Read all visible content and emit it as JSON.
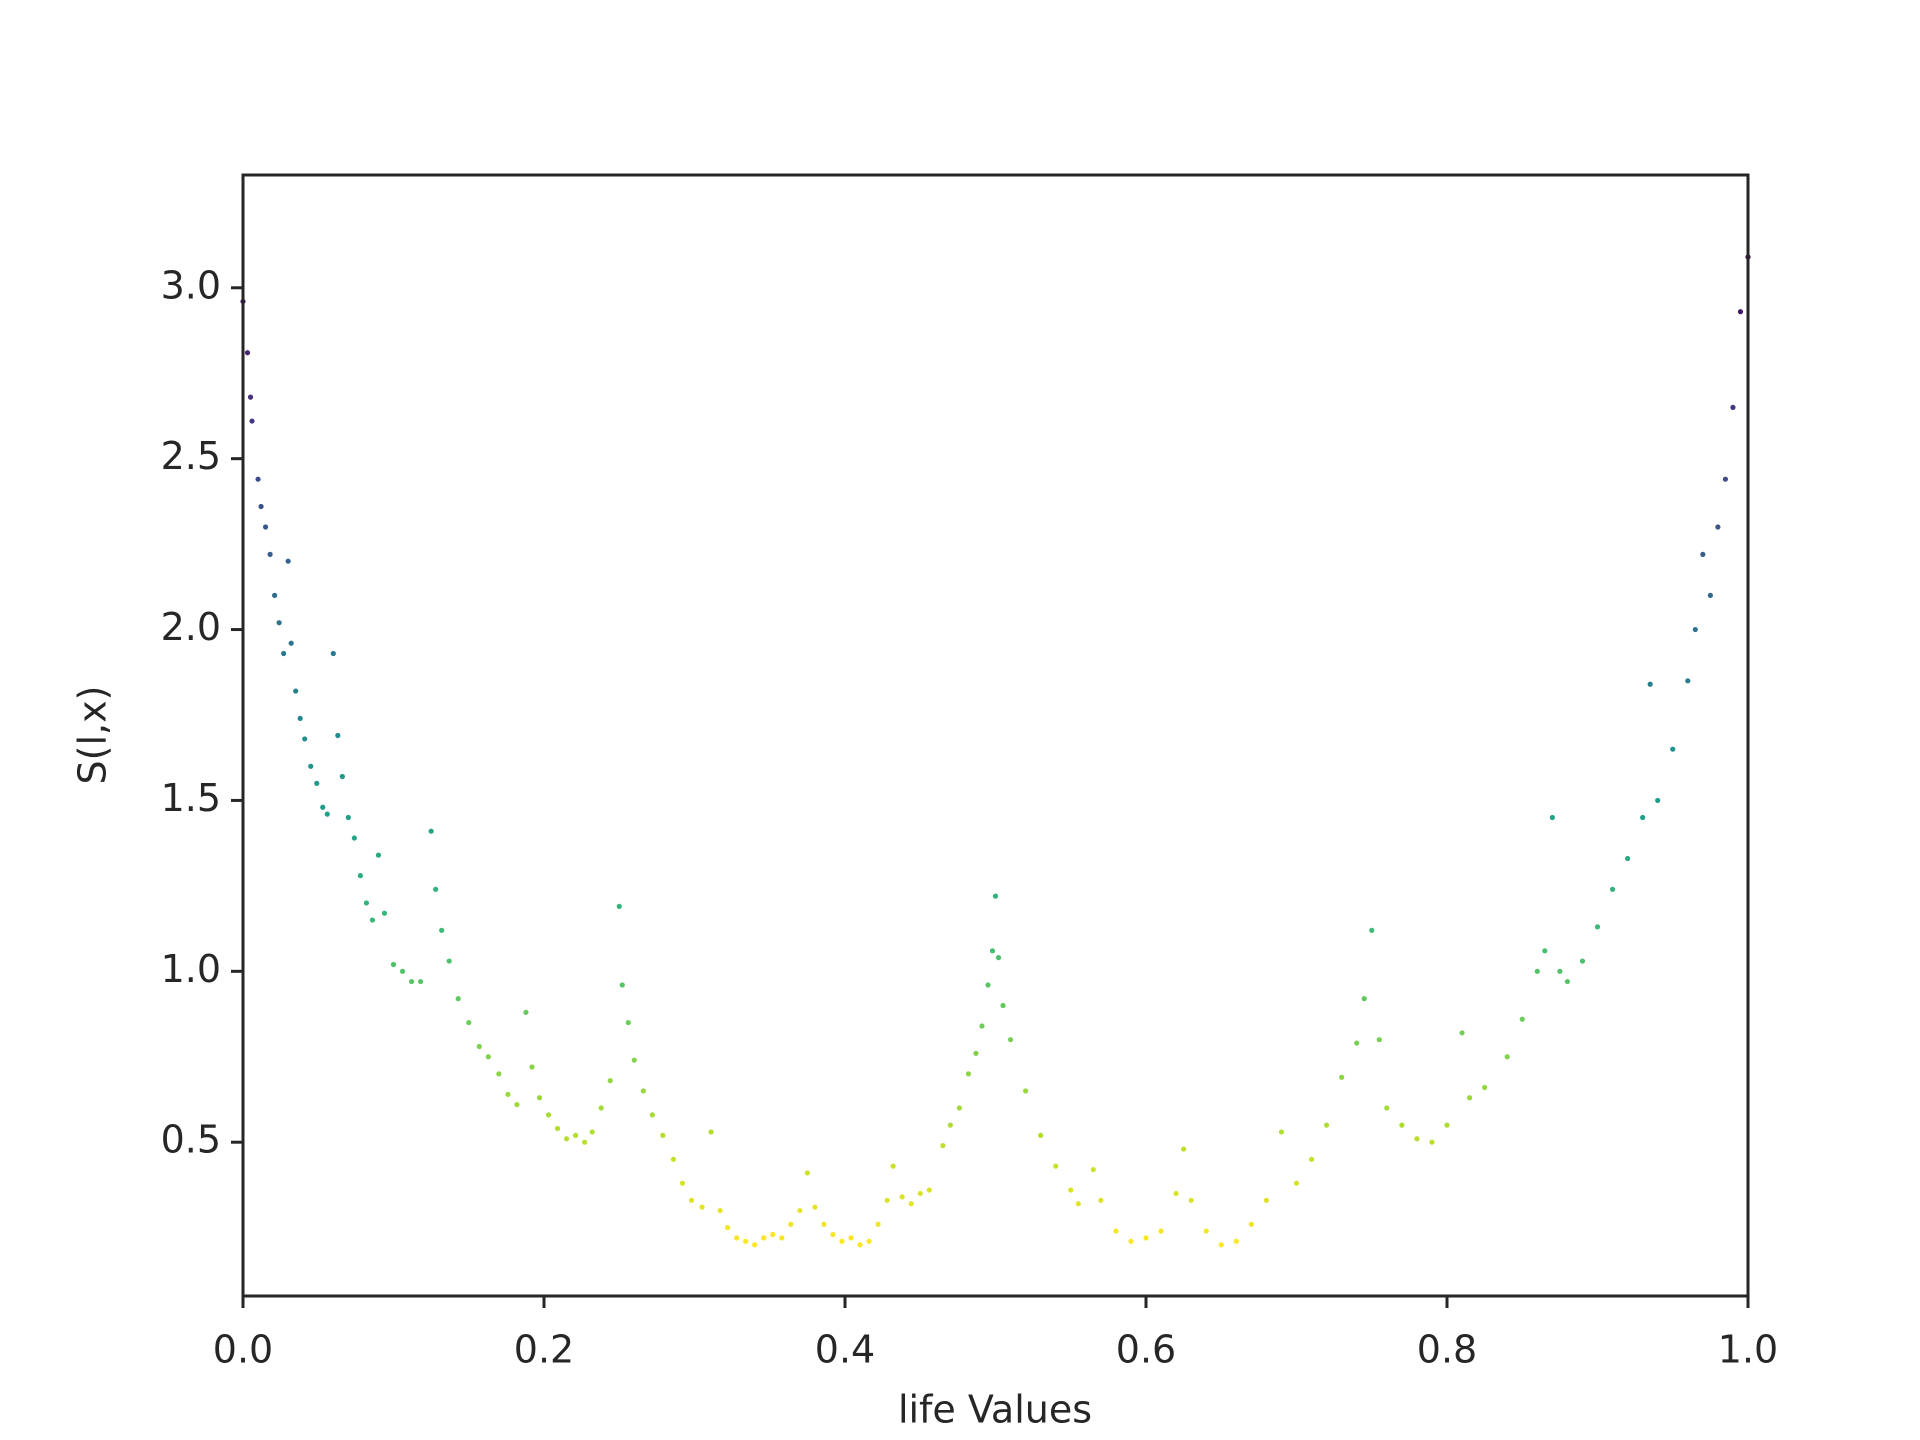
{
  "chart_data": {
    "type": "scatter",
    "x_label": "life Values",
    "y_label": "S(l,x)",
    "colormap": "viridis_r",
    "grid": false,
    "xlim": [
      0,
      1
    ],
    "ylim": [
      0.05,
      3.33
    ],
    "xticks": [
      {
        "value": 0,
        "label": "0.0"
      },
      0.2,
      0.4,
      0.6,
      0.8,
      {
        "value": 1,
        "label": "1.0"
      }
    ],
    "yticks": [
      0.5,
      {
        "value": 1,
        "label": "1.0"
      },
      1.5,
      {
        "value": 2,
        "label": "2.0"
      },
      2.5,
      {
        "value": 3,
        "label": "3.0"
      }
    ],
    "x": [
      0.0,
      0.003,
      0.005,
      0.006,
      0.01,
      0.012,
      0.015,
      0.018,
      0.021,
      0.024,
      0.027,
      0.03,
      0.032,
      0.035,
      0.038,
      0.041,
      0.045,
      0.049,
      0.053,
      0.056,
      0.06,
      0.063,
      0.066,
      0.07,
      0.074,
      0.078,
      0.082,
      0.086,
      0.09,
      0.094,
      0.1,
      0.106,
      0.112,
      0.118,
      0.125,
      0.128,
      0.132,
      0.137,
      0.143,
      0.15,
      0.157,
      0.163,
      0.17,
      0.176,
      0.182,
      0.188,
      0.192,
      0.197,
      0.203,
      0.209,
      0.215,
      0.221,
      0.227,
      0.232,
      0.238,
      0.244,
      0.25,
      0.252,
      0.256,
      0.26,
      0.266,
      0.272,
      0.279,
      0.286,
      0.292,
      0.298,
      0.305,
      0.311,
      0.317,
      0.322,
      0.328,
      0.334,
      0.34,
      0.346,
      0.352,
      0.358,
      0.364,
      0.37,
      0.375,
      0.38,
      0.386,
      0.392,
      0.398,
      0.404,
      0.41,
      0.416,
      0.422,
      0.428,
      0.432,
      0.438,
      0.444,
      0.45,
      0.456,
      0.465,
      0.47,
      0.476,
      0.482,
      0.487,
      0.491,
      0.495,
      0.498,
      0.5,
      0.502,
      0.505,
      0.51,
      0.52,
      0.53,
      0.54,
      0.55,
      0.555,
      0.565,
      0.57,
      0.58,
      0.59,
      0.6,
      0.61,
      0.62,
      0.625,
      0.63,
      0.64,
      0.65,
      0.66,
      0.67,
      0.68,
      0.69,
      0.7,
      0.71,
      0.72,
      0.73,
      0.74,
      0.745,
      0.75,
      0.755,
      0.76,
      0.77,
      0.78,
      0.79,
      0.8,
      0.81,
      0.815,
      0.825,
      0.84,
      0.85,
      0.86,
      0.865,
      0.87,
      0.875,
      0.88,
      0.89,
      0.9,
      0.91,
      0.92,
      0.93,
      0.935,
      0.94,
      0.95,
      0.96,
      0.965,
      0.97,
      0.975,
      0.98,
      0.985,
      0.99,
      0.995,
      1.0
    ],
    "values": [
      2.96,
      2.81,
      2.68,
      2.61,
      2.44,
      2.36,
      2.3,
      2.22,
      2.1,
      2.02,
      1.93,
      2.2,
      1.96,
      1.82,
      1.74,
      1.68,
      1.6,
      1.55,
      1.48,
      1.46,
      1.93,
      1.69,
      1.57,
      1.45,
      1.39,
      1.28,
      1.2,
      1.15,
      1.34,
      1.17,
      1.02,
      1.0,
      0.97,
      0.97,
      1.41,
      1.24,
      1.12,
      1.03,
      0.92,
      0.85,
      0.78,
      0.75,
      0.7,
      0.64,
      0.61,
      0.88,
      0.72,
      0.63,
      0.58,
      0.54,
      0.51,
      0.52,
      0.5,
      0.53,
      0.6,
      0.68,
      1.19,
      0.96,
      0.85,
      0.74,
      0.65,
      0.58,
      0.52,
      0.45,
      0.38,
      0.33,
      0.31,
      0.53,
      0.3,
      0.25,
      0.22,
      0.21,
      0.2,
      0.22,
      0.23,
      0.22,
      0.26,
      0.3,
      0.41,
      0.31,
      0.26,
      0.23,
      0.21,
      0.22,
      0.2,
      0.21,
      0.26,
      0.33,
      0.43,
      0.34,
      0.32,
      0.35,
      0.36,
      0.49,
      0.55,
      0.6,
      0.7,
      0.76,
      0.84,
      0.96,
      1.06,
      1.22,
      1.04,
      0.9,
      0.8,
      0.65,
      0.52,
      0.43,
      0.36,
      0.32,
      0.42,
      0.33,
      0.24,
      0.21,
      0.22,
      0.24,
      0.35,
      0.48,
      0.33,
      0.24,
      0.2,
      0.21,
      0.26,
      0.33,
      0.53,
      0.38,
      0.45,
      0.55,
      0.69,
      0.79,
      0.92,
      1.12,
      0.8,
      0.6,
      0.55,
      0.51,
      0.5,
      0.55,
      0.82,
      0.63,
      0.66,
      0.75,
      0.86,
      1.0,
      1.06,
      1.45,
      1.0,
      0.97,
      1.03,
      1.13,
      1.24,
      1.33,
      1.45,
      1.84,
      1.5,
      1.65,
      1.85,
      2.0,
      2.22,
      2.1,
      2.3,
      2.44,
      2.65,
      2.93,
      3.09
    ]
  }
}
